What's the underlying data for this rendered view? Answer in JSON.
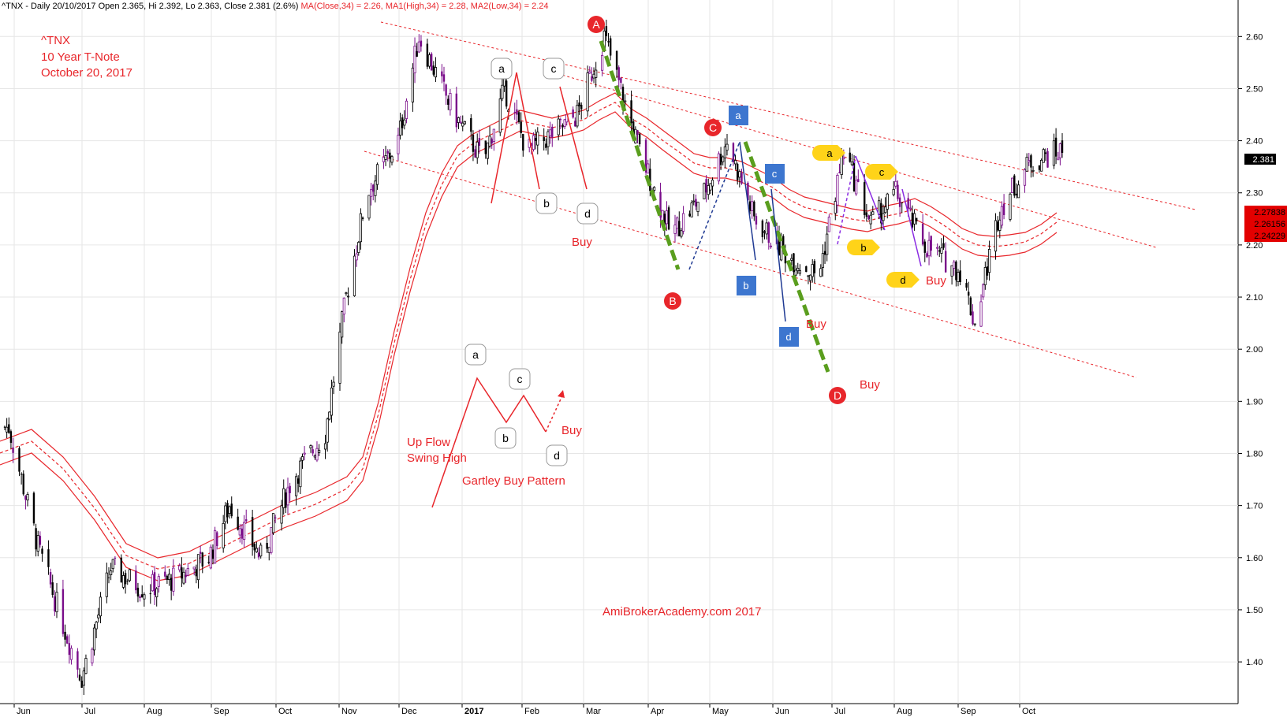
{
  "header": {
    "symbol": "^TNX",
    "interval": "Daily",
    "date": "20/10/2017",
    "open": "Open 2.365,",
    "hi": "Hi 2.392,",
    "lo": "Lo 2.363,",
    "close": "Close 2.381 (2.6%)",
    "ma": "MA(Close,34) = 2.26,",
    "ma1": "MA1(High,34) = 2.28,",
    "ma2": "MA2(Low,34) = 2.24"
  },
  "title_block": [
    "^TNX",
    "10 Year T-Note",
    "October 20, 2017"
  ],
  "watermark": "AmiBrokerAcademy.com  2017",
  "legend_pattern": {
    "line1": "Up Flow",
    "line2": "Swing High",
    "pattern_name": "Gartley Buy Pattern",
    "buy": "Buy",
    "labels": [
      "a",
      "b",
      "c",
      "d"
    ]
  },
  "price_badges": {
    "last": "2.381",
    "ma1": "2.27838",
    "ma": "2.26156",
    "ma2": "2.24229"
  },
  "annotations": {
    "big": [
      "A",
      "B",
      "C",
      "D"
    ],
    "buy": "Buy"
  },
  "colors": {
    "candle": "#000000",
    "candle_purple": "#7a0d8a",
    "ma": "#e8262b",
    "channel": "#e8262b",
    "text_red": "#e8262b",
    "green": "#5a9e1e",
    "blue_badge": "#3d76cf",
    "yellow_badge": "#ffd319"
  },
  "chart_data": {
    "type": "candlestick",
    "ylim": [
      1.32,
      2.67
    ],
    "y_ticks": [
      "1.40",
      "1.50",
      "1.60",
      "1.70",
      "1.80",
      "1.90",
      "2.00",
      "2.10",
      "2.20",
      "2.30",
      "2.40",
      "2.50",
      "2.60"
    ],
    "x_ticks": [
      "Jun",
      "Jul",
      "Aug",
      "Sep",
      "Oct",
      "Nov",
      "Dec",
      "2017",
      "Feb",
      "Mar",
      "Apr",
      "May",
      "Jun",
      "Jul",
      "Aug",
      "Sep",
      "Oct"
    ],
    "close_path": [
      [
        "2016-06-01",
        1.85
      ],
      [
        "2016-06-15",
        1.62
      ],
      [
        "2016-06-28",
        1.46
      ],
      [
        "2016-07-06",
        1.37
      ],
      [
        "2016-07-20",
        1.58
      ],
      [
        "2016-08-05",
        1.54
      ],
      [
        "2016-08-20",
        1.56
      ],
      [
        "2016-09-05",
        1.6
      ],
      [
        "2016-09-15",
        1.7
      ],
      [
        "2016-09-30",
        1.6
      ],
      [
        "2016-10-15",
        1.75
      ],
      [
        "2016-10-31",
        1.84
      ],
      [
        "2016-11-10",
        2.1
      ],
      [
        "2016-11-20",
        2.3
      ],
      [
        "2016-12-05",
        2.4
      ],
      [
        "2016-12-15",
        2.6
      ],
      [
        "2017-01-01",
        2.45
      ],
      [
        "2017-01-15",
        2.36
      ],
      [
        "2017-01-25",
        2.5
      ],
      [
        "2017-02-05",
        2.38
      ],
      [
        "2017-02-20",
        2.42
      ],
      [
        "2017-03-01",
        2.45
      ],
      [
        "2017-03-14",
        2.6
      ],
      [
        "2017-03-31",
        2.38
      ],
      [
        "2017-04-15",
        2.22
      ],
      [
        "2017-05-01",
        2.3
      ],
      [
        "2017-05-12",
        2.4
      ],
      [
        "2017-05-25",
        2.25
      ],
      [
        "2017-06-10",
        2.18
      ],
      [
        "2017-06-25",
        2.14
      ],
      [
        "2017-07-07",
        2.38
      ],
      [
        "2017-07-20",
        2.24
      ],
      [
        "2017-08-01",
        2.3
      ],
      [
        "2017-08-15",
        2.2
      ],
      [
        "2017-09-01",
        2.15
      ],
      [
        "2017-09-08",
        2.05
      ],
      [
        "2017-09-20",
        2.27
      ],
      [
        "2017-10-05",
        2.36
      ],
      [
        "2017-10-20",
        2.381
      ]
    ],
    "moving_averages": [
      {
        "name": "MA(Close,34)",
        "value": 2.26
      },
      {
        "name": "MA1(High,34)",
        "value": 2.28
      },
      {
        "name": "MA2(Low,34)",
        "value": 2.24
      }
    ],
    "last_close": 2.381
  }
}
